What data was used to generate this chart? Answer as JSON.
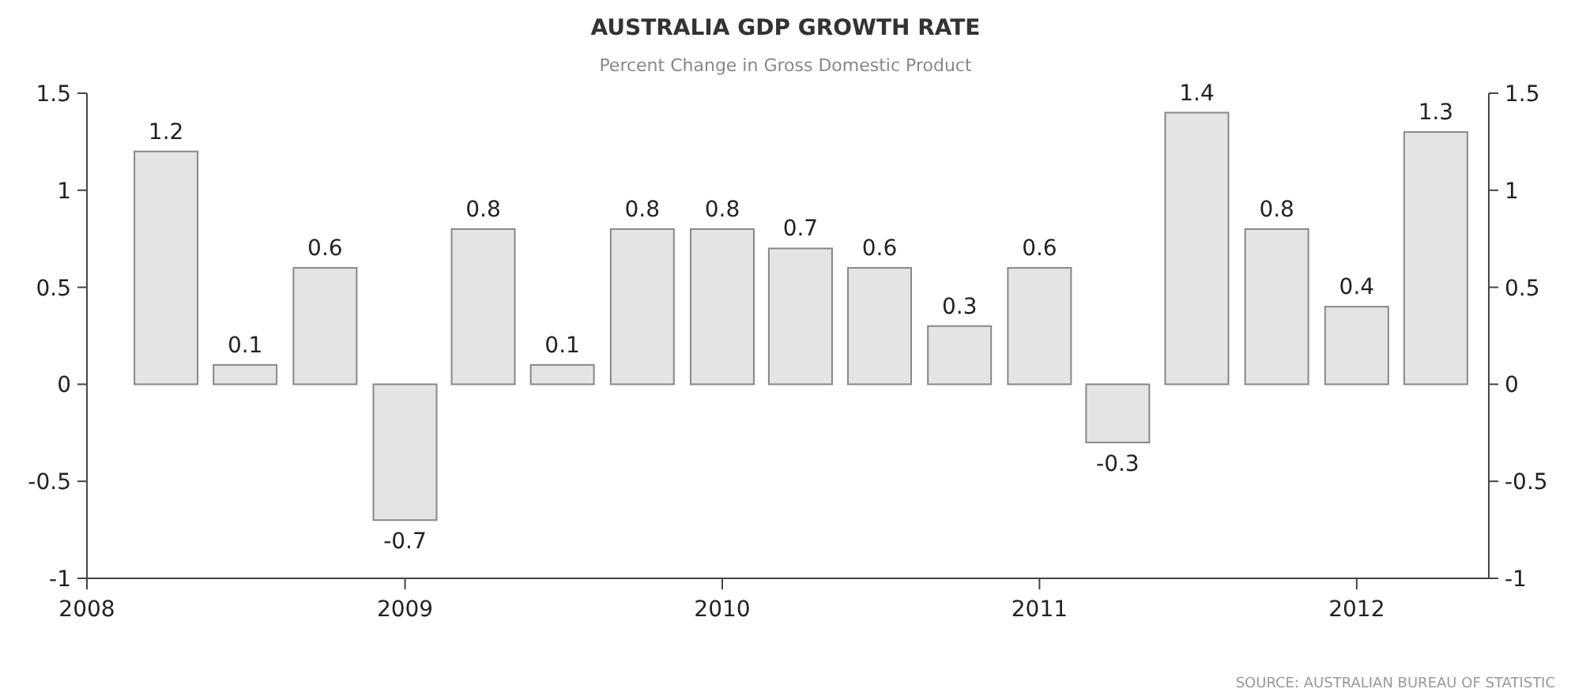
{
  "chart_data": {
    "type": "bar",
    "title": "AUSTRALIA GDP GROWTH RATE",
    "subtitle": "Percent Change in Gross Domestic Product",
    "x": [
      "2008-04",
      "2008-07",
      "2008-10",
      "2009-01",
      "2009-04",
      "2009-07",
      "2009-10",
      "2010-01",
      "2010-04",
      "2010-07",
      "2010-10",
      "2011-01",
      "2011-04",
      "2011-07",
      "2011-10",
      "2012-01",
      "2012-04"
    ],
    "values": [
      1.2,
      0.1,
      0.6,
      -0.7,
      0.8,
      0.1,
      0.8,
      0.8,
      0.7,
      0.6,
      0.3,
      0.6,
      -0.3,
      1.4,
      0.8,
      0.4,
      1.3
    ],
    "color": "#e4e4e4",
    "data_labels": true,
    "xlim": [
      "2008-01",
      "2012-06"
    ],
    "xticks": [
      {
        "value": "2008-01",
        "label": "2008"
      },
      {
        "value": "2009-01",
        "label": "2009"
      },
      {
        "value": "2010-01",
        "label": "2010"
      },
      {
        "value": "2011-01",
        "label": "2011"
      },
      {
        "value": "2012-01",
        "label": "2012"
      }
    ],
    "ylim": [
      -1,
      1.5
    ],
    "yticks": [
      -1,
      -0.5,
      0,
      0.5,
      1,
      1.5
    ],
    "y2lim": [
      -1,
      1.5
    ],
    "y2ticks": [
      -1,
      -0.5,
      0,
      0.5,
      1,
      1.5
    ],
    "annotations": [
      "SOURCE: AUSTRALIAN BUREAU OF STATISTIC"
    ]
  }
}
